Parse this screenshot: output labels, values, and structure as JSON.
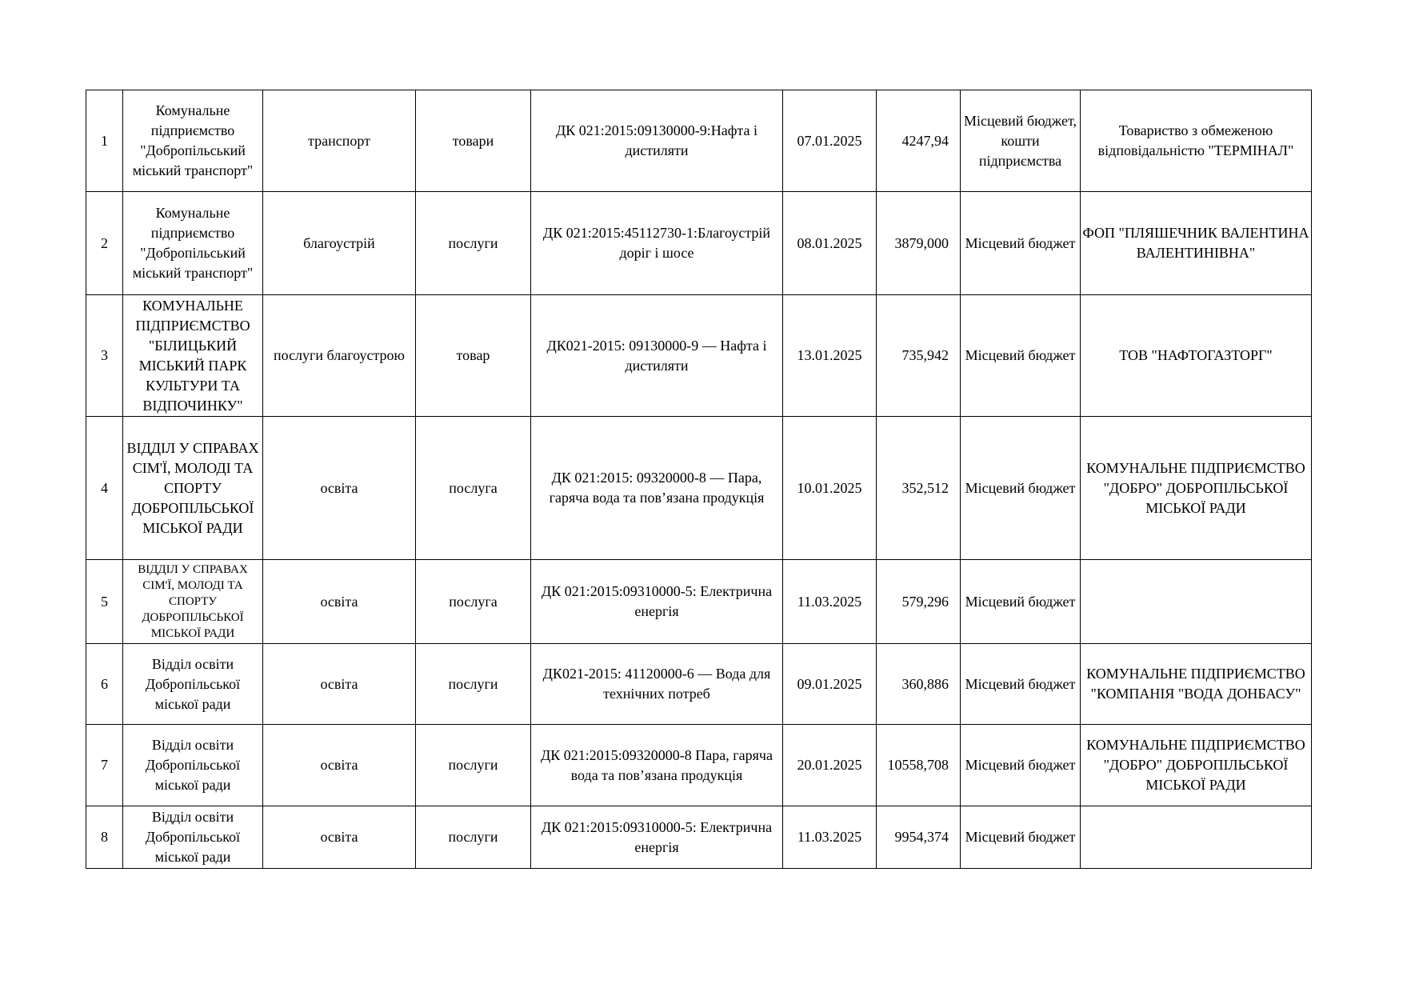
{
  "rows": [
    {
      "no": "1",
      "customer": "Комунальне підприємство \"Добропільський міський транспорт\"",
      "sector": "транспорт",
      "type": "товари",
      "subject": "ДК 021:2015:09130000-9:Нафта і дистиляти",
      "date": "07.01.2025",
      "amount": "4247,94",
      "funding": "Місцевий бюджет, кошти підприємства",
      "supplier": "Товариство з обмеженою відповідальністю \"ТЕРМІНАЛ\""
    },
    {
      "no": "2",
      "customer": "Комунальне підприємство \"Добропільський міський транспорт\"",
      "sector": "благоустрій",
      "type": "послуги",
      "subject": "ДК 021:2015:45112730-1:Благоустрій доріг і шосе",
      "date": "08.01.2025",
      "amount": "3879,000",
      "funding": "Місцевий бюджет",
      "supplier": "ФОП \"ПЛЯШЕЧНИК ВАЛЕНТИНА ВАЛЕНТИНІВНА\""
    },
    {
      "no": "3",
      "customer": "КОМУНАЛЬНЕ ПІДПРИЄМСТВО \"БІЛИЦЬКИЙ МІСЬКИЙ ПАРК КУЛЬТУРИ ТА ВІДПОЧИНКУ\"",
      "sector": "послуги благоустрою",
      "type": "товар",
      "subject": "ДК021-2015: 09130000-9 — Нафта і дистиляти",
      "date": "13.01.2025",
      "amount": "735,942",
      "funding": "Місцевий бюджет",
      "supplier": "ТОВ \"НАФТОГАЗТОРГ\""
    },
    {
      "no": "4",
      "customer": "ВІДДІЛ У СПРАВАХ СІМ'Ї, МОЛОДІ ТА СПОРТУ ДОБРОПІЛЬСЬКОЇ МІСЬКОЇ РАДИ",
      "sector": "освіта",
      "type": "послуга",
      "subject": "ДК 021:2015: 09320000-8 — Пара, гаряча вода та пов’язана продукція",
      "date": "10.01.2025",
      "amount": "352,512",
      "funding": "Місцевий бюджет",
      "supplier": "КОМУНАЛЬНЕ ПІДПРИЄМСТВО \"ДОБРО\" ДОБРОПІЛЬСЬКОЇ МІСЬКОЇ РАДИ"
    },
    {
      "no": "5",
      "customer": "ВІДДІЛ У СПРАВАХ СІМ'Ї, МОЛОДІ ТА СПОРТУ ДОБРОПІЛЬСЬКОЇ МІСЬКОЇ РАДИ",
      "sector": "освіта",
      "type": "послуга",
      "subject": "ДК 021:2015:09310000-5: Електрична енергія",
      "date": "11.03.2025",
      "amount": "579,296",
      "funding": "Місцевий бюджет",
      "supplier": ""
    },
    {
      "no": "6",
      "customer": "Відділ освіти Добропільської міської ради",
      "sector": "освіта",
      "type": "послуги",
      "subject": "ДК021-2015: 41120000-6 — Вода для технічних потреб",
      "date": "09.01.2025",
      "amount": "360,886",
      "funding": "Місцевий бюджет",
      "supplier": "КОМУНАЛЬНЕ ПІДПРИЄМСТВО \"КОМПАНІЯ \"ВОДА ДОНБАСУ\""
    },
    {
      "no": "7",
      "customer": "Відділ освіти Добропільської міської ради",
      "sector": "освіта",
      "type": "послуги",
      "subject": "ДК 021:2015:09320000-8 Пара, гаряча вода та пов’язана продукція",
      "date": "20.01.2025",
      "amount": "10558,708",
      "funding": "Місцевий бюджет",
      "supplier": "КОМУНАЛЬНЕ ПІДПРИЄМСТВО \"ДОБРО\" ДОБРОПІЛЬСЬКОЇ МІСЬКОЇ РАДИ"
    },
    {
      "no": "8",
      "customer": "Відділ освіти Добропільської міської ради",
      "sector": "освіта",
      "type": "послуги",
      "subject": "ДК 021:2015:09310000-5: Електрична енергія",
      "date": "11.03.2025",
      "amount": "9954,374",
      "funding": "Місцевий бюджет",
      "supplier": ""
    }
  ]
}
